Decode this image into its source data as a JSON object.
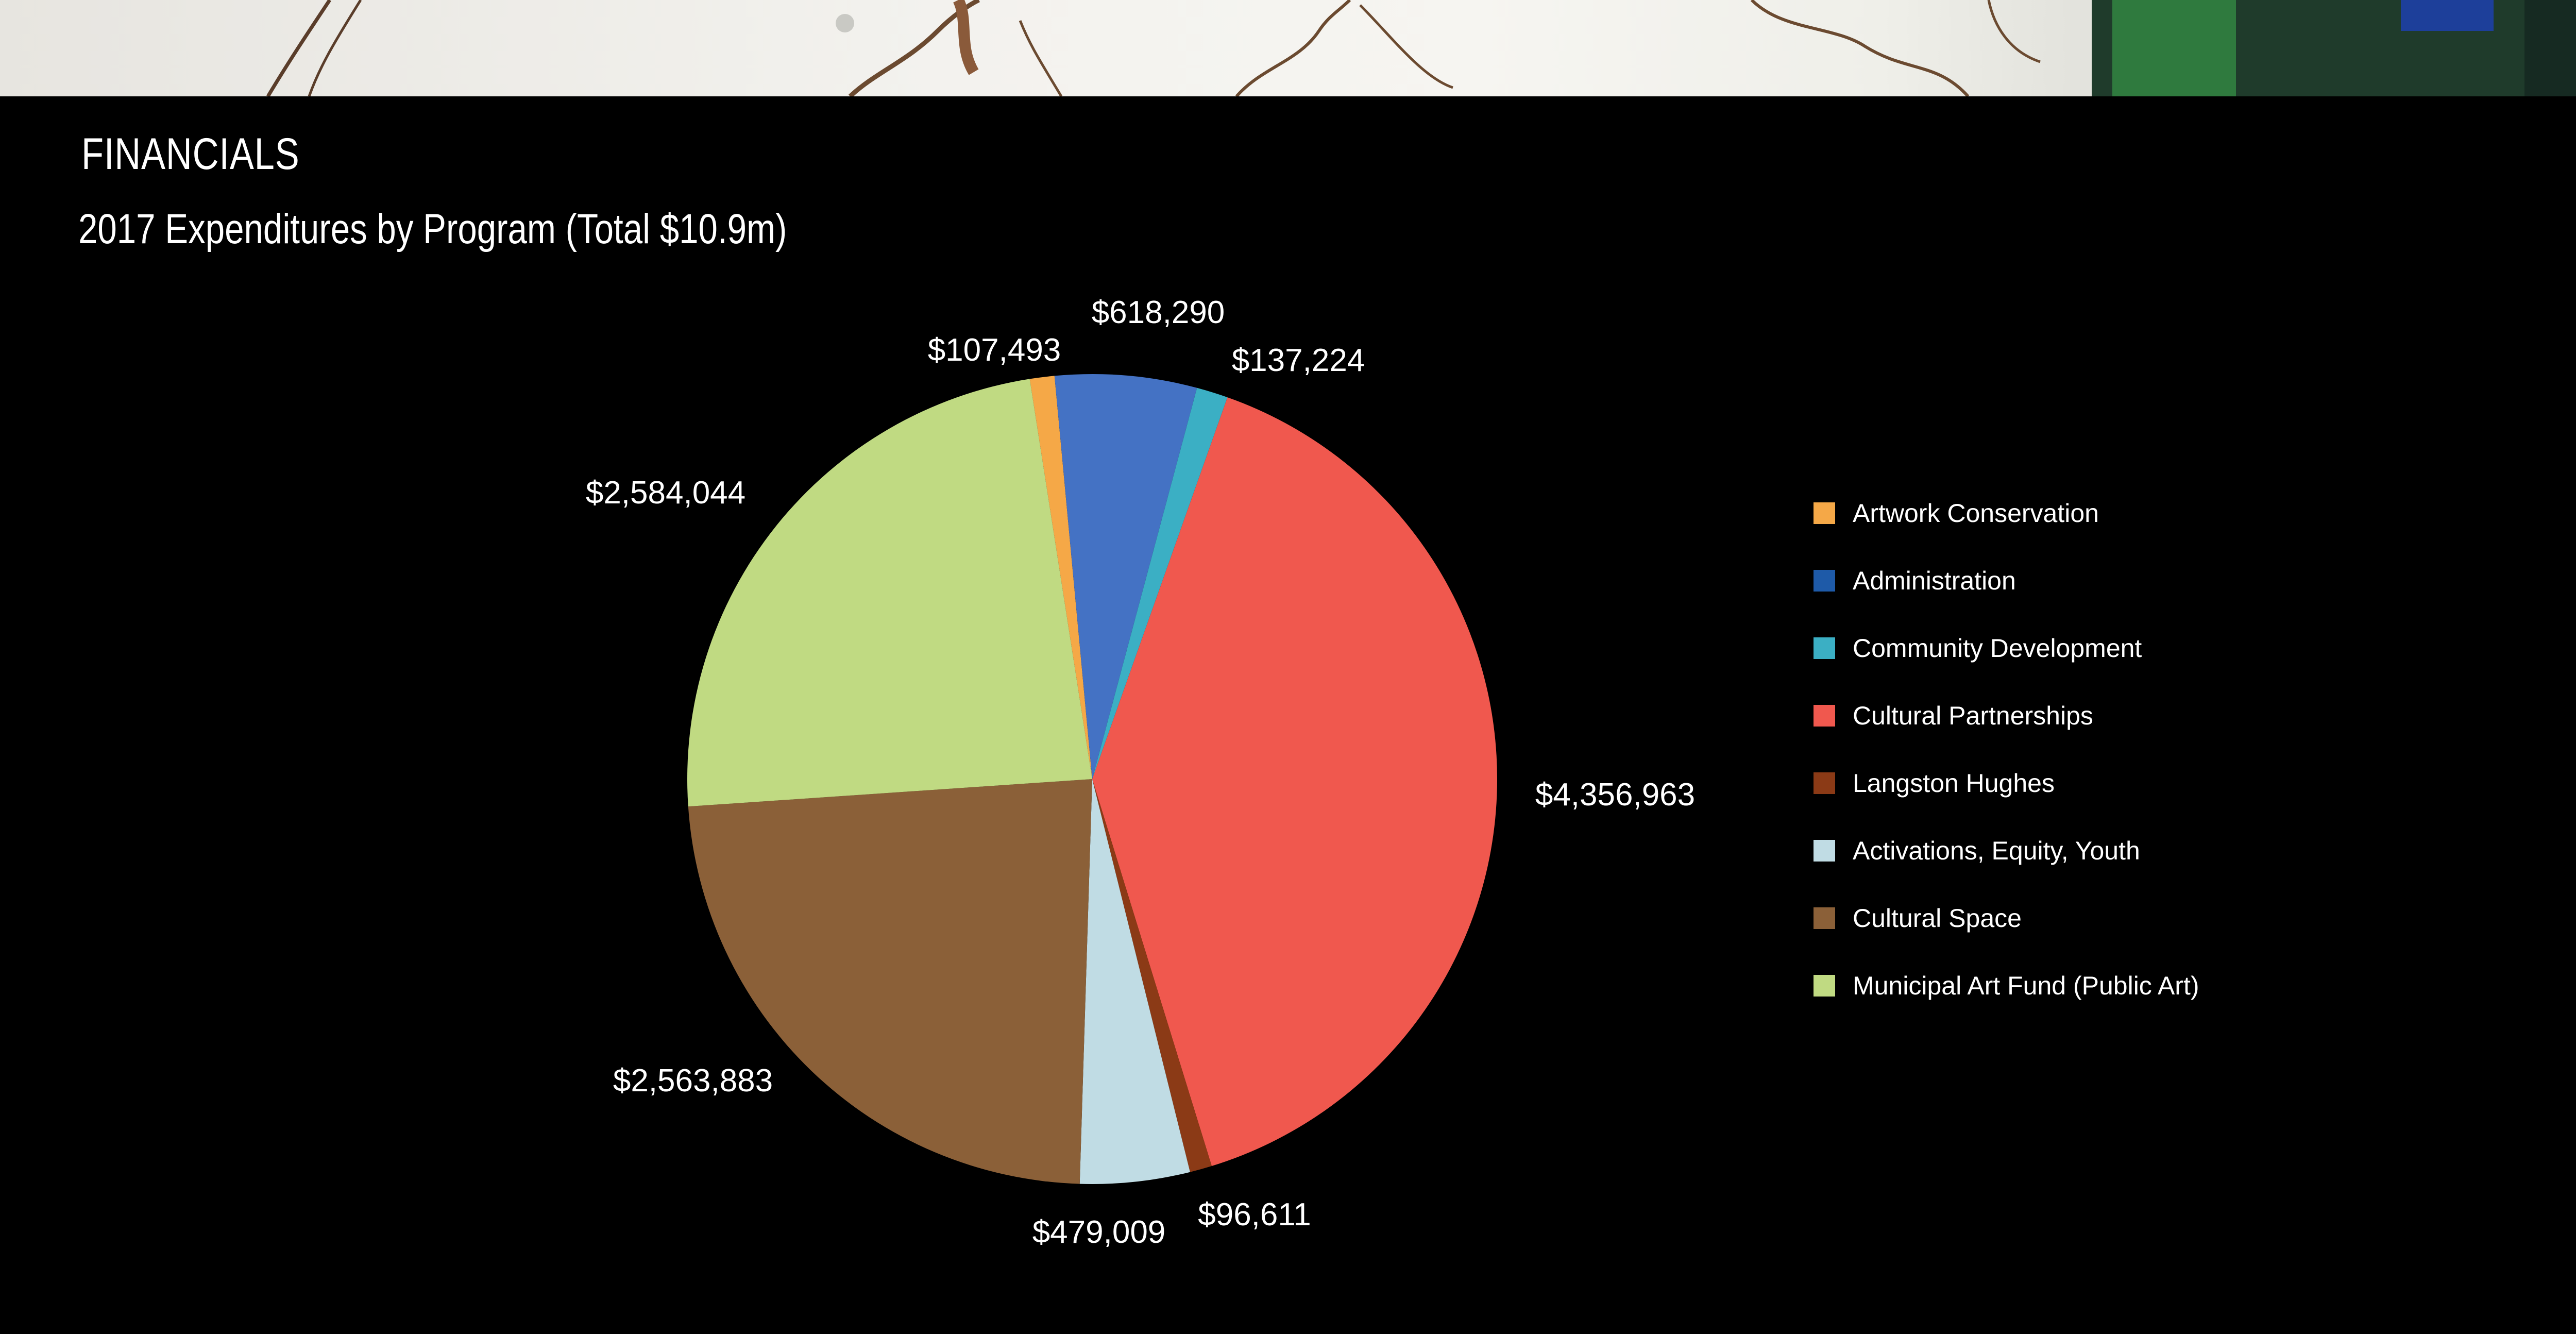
{
  "header": {
    "section_title": "FINANCIALS",
    "chart_title": "2017 Expenditures by Program (Total $10.9m)"
  },
  "colors": {
    "background": "#000000",
    "text": "#ffffff"
  },
  "chart_data": {
    "type": "pie",
    "title": "2017 Expenditures by Program (Total $10.9m)",
    "legend_position": "right",
    "slices": [
      {
        "name": "Artwork Conservation",
        "value": 107493,
        "label": "$107,493",
        "color": "#F5A847"
      },
      {
        "name": "Administration",
        "value": 618290,
        "label": "$618,290",
        "color": "#4472C4"
      },
      {
        "name": "Community Development",
        "value": 137224,
        "label": "$137,224",
        "color": "#3BAFC4"
      },
      {
        "name": "Cultural Partnerships",
        "value": 4356963,
        "label": "$4,356,963",
        "color": "#F0584E"
      },
      {
        "name": "Langston Hughes",
        "value": 96611,
        "label": "$96,611",
        "color": "#8B3A16"
      },
      {
        "name": "Activations, Equity, Youth",
        "value": 479009,
        "label": "$479,009",
        "color": "#C0DCE4"
      },
      {
        "name": "Cultural Space",
        "value": 2563883,
        "label": "$2,563,883",
        "color": "#8B6038"
      },
      {
        "name": "Municipal Art Fund (Public Art)",
        "value": 2584044,
        "label": "$2,584,044",
        "color": "#C0DA82"
      }
    ],
    "legend": [
      {
        "label": "Artwork Conservation",
        "color": "#F5A847"
      },
      {
        "label": "Administration",
        "color": "#1E5AA8"
      },
      {
        "label": "Community Development",
        "color": "#3BAFC4"
      },
      {
        "label": "Cultural Partnerships",
        "color": "#F0584E"
      },
      {
        "label": "Langston Hughes",
        "color": "#8B3A16"
      },
      {
        "label": "Activations, Equity, Youth",
        "color": "#C0DCE4"
      },
      {
        "label": "Cultural Space",
        "color": "#8B6038"
      },
      {
        "label": "Municipal Art Fund (Public Art)",
        "color": "#C0DA82"
      }
    ]
  }
}
